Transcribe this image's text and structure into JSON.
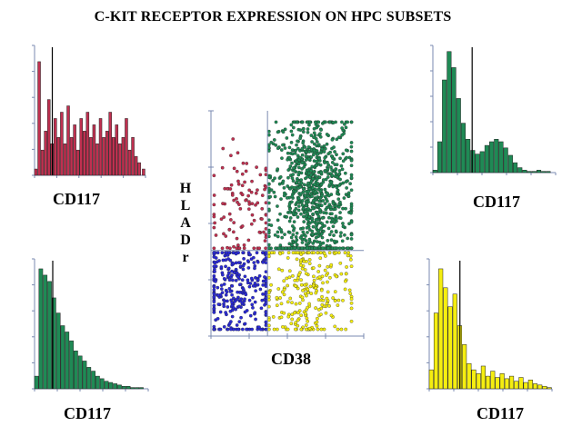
{
  "title": "C-KIT RECEPTOR EXPRESSION ON HPC SUBSETS",
  "colors": {
    "red": "#c03050",
    "green": "#1f8a55",
    "blue": "#2a2ad8",
    "yellow": "#f5ee10",
    "axis": "#7a8ab0"
  },
  "chart_data": [
    {
      "id": "hist-top-left",
      "type": "area",
      "xlabel": "CD117",
      "ylabel": "",
      "color": "red",
      "gate": 0.16,
      "x": [
        0.0,
        0.03,
        0.06,
        0.09,
        0.12,
        0.15,
        0.18,
        0.21,
        0.24,
        0.27,
        0.3,
        0.33,
        0.36,
        0.39,
        0.42,
        0.45,
        0.48,
        0.51,
        0.54,
        0.57,
        0.6,
        0.63,
        0.66,
        0.69,
        0.72,
        0.75,
        0.78,
        0.81,
        0.84,
        0.87,
        0.9,
        0.93,
        0.96,
        1.0
      ],
      "values": [
        0.05,
        0.9,
        0.2,
        0.35,
        0.6,
        0.25,
        0.45,
        0.3,
        0.5,
        0.25,
        0.55,
        0.3,
        0.4,
        0.2,
        0.45,
        0.35,
        0.5,
        0.3,
        0.4,
        0.25,
        0.45,
        0.3,
        0.35,
        0.5,
        0.3,
        0.4,
        0.25,
        0.3,
        0.45,
        0.2,
        0.3,
        0.15,
        0.1,
        0.05
      ]
    },
    {
      "id": "hist-top-right",
      "type": "area",
      "xlabel": "CD117",
      "ylabel": "",
      "color": "green",
      "gate": 0.32,
      "x": [
        0.0,
        0.04,
        0.08,
        0.12,
        0.16,
        0.2,
        0.24,
        0.28,
        0.32,
        0.36,
        0.4,
        0.44,
        0.48,
        0.52,
        0.56,
        0.6,
        0.64,
        0.68,
        0.72,
        0.76,
        0.8,
        0.84,
        0.88,
        0.92,
        0.96,
        1.0
      ],
      "values": [
        0.02,
        0.25,
        0.75,
        0.98,
        0.85,
        0.6,
        0.4,
        0.27,
        0.18,
        0.15,
        0.17,
        0.22,
        0.25,
        0.27,
        0.25,
        0.2,
        0.14,
        0.08,
        0.04,
        0.02,
        0.01,
        0.01,
        0.02,
        0.01,
        0.01,
        0.0
      ]
    },
    {
      "id": "hist-bottom-left",
      "type": "area",
      "xlabel": "CD117",
      "ylabel": "",
      "color": "green",
      "gate": 0.16,
      "x": [
        0.0,
        0.04,
        0.08,
        0.12,
        0.16,
        0.2,
        0.24,
        0.28,
        0.32,
        0.36,
        0.4,
        0.44,
        0.48,
        0.52,
        0.56,
        0.6,
        0.64,
        0.68,
        0.72,
        0.76,
        0.8,
        0.84,
        0.88,
        0.92,
        0.96,
        1.0
      ],
      "values": [
        0.1,
        0.95,
        0.9,
        0.85,
        0.72,
        0.6,
        0.5,
        0.45,
        0.38,
        0.3,
        0.26,
        0.22,
        0.17,
        0.14,
        0.1,
        0.08,
        0.06,
        0.05,
        0.04,
        0.03,
        0.02,
        0.02,
        0.01,
        0.01,
        0.01,
        0.0
      ]
    },
    {
      "id": "hist-bottom-right",
      "type": "area",
      "xlabel": "CD117",
      "ylabel": "",
      "color": "yellow",
      "gate": 0.25,
      "x": [
        0.0,
        0.04,
        0.08,
        0.12,
        0.16,
        0.2,
        0.24,
        0.28,
        0.32,
        0.36,
        0.4,
        0.44,
        0.48,
        0.52,
        0.56,
        0.6,
        0.64,
        0.68,
        0.72,
        0.76,
        0.8,
        0.84,
        0.88,
        0.92,
        0.96,
        1.0
      ],
      "values": [
        0.15,
        0.6,
        0.95,
        0.8,
        0.65,
        0.75,
        0.5,
        0.35,
        0.2,
        0.15,
        0.12,
        0.18,
        0.1,
        0.14,
        0.09,
        0.12,
        0.08,
        0.1,
        0.06,
        0.09,
        0.05,
        0.07,
        0.04,
        0.03,
        0.02,
        0.01
      ]
    },
    {
      "id": "dotplot-center",
      "type": "scatter",
      "xlabel": "CD38",
      "ylabel": "HLADr",
      "ylabel_letters": [
        "H",
        "L",
        "A",
        "D",
        "r"
      ],
      "xlim": [
        0,
        1
      ],
      "ylim": [
        0,
        1
      ],
      "gate_x": 0.37,
      "gate_y": 0.38,
      "series": [
        {
          "quadrant": "upper-left",
          "color": "red",
          "count": 110,
          "center": [
            0.22,
            0.55
          ],
          "spread": [
            0.12,
            0.13
          ]
        },
        {
          "quadrant": "upper-right",
          "color": "green",
          "count": 900,
          "center": [
            0.66,
            0.63
          ],
          "spread": [
            0.14,
            0.19
          ]
        },
        {
          "quadrant": "lower-left",
          "color": "blue",
          "count": 320,
          "center": [
            0.18,
            0.2
          ],
          "spread": [
            0.14,
            0.13
          ]
        },
        {
          "quadrant": "lower-right",
          "color": "yellow",
          "count": 260,
          "center": [
            0.62,
            0.2
          ],
          "spread": [
            0.14,
            0.13
          ]
        }
      ]
    }
  ]
}
